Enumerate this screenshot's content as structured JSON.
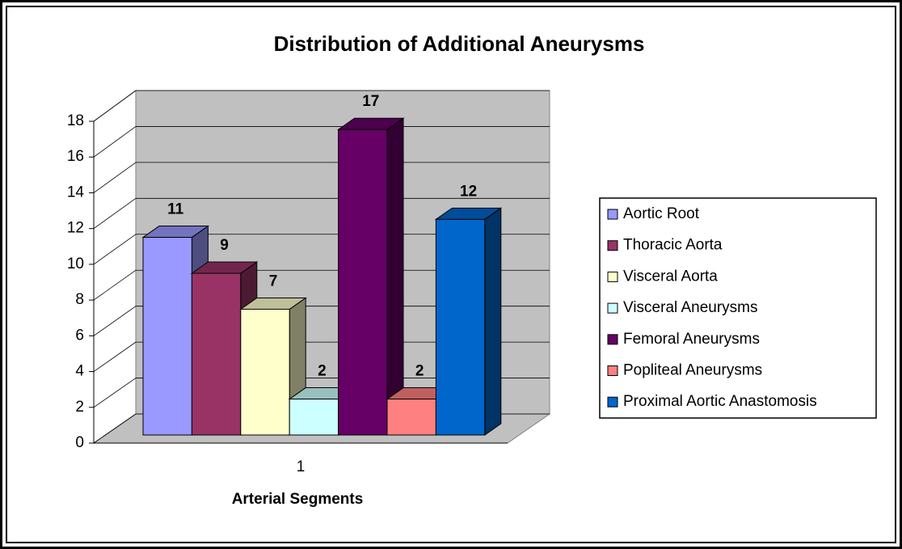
{
  "chart_data": {
    "type": "bar3d",
    "title": "Distribution of Additional Aneurysms",
    "x_label": "Arterial Segments",
    "categories": [
      "1"
    ],
    "series": [
      {
        "name": "Aortic Root",
        "color": "#9999ff",
        "values": [
          11
        ]
      },
      {
        "name": "Thoracic Aorta",
        "color": "#993366",
        "values": [
          9
        ]
      },
      {
        "name": "Visceral Aorta",
        "color": "#ffffcc",
        "values": [
          7
        ]
      },
      {
        "name": "Visceral Aneurysms",
        "color": "#ccffff",
        "values": [
          2
        ]
      },
      {
        "name": "Femoral Aneurysms",
        "color": "#660066",
        "values": [
          17
        ]
      },
      {
        "name": "Popliteal Aneurysms",
        "color": "#ff8080",
        "values": [
          2
        ]
      },
      {
        "name": "Proximal Aortic Anastomosis",
        "color": "#0066cc",
        "values": [
          12
        ]
      }
    ],
    "ylim": [
      0,
      18
    ],
    "yticks": [
      0,
      2,
      4,
      6,
      8,
      10,
      12,
      14,
      16,
      18
    ],
    "grid": true,
    "legend": "right"
  }
}
